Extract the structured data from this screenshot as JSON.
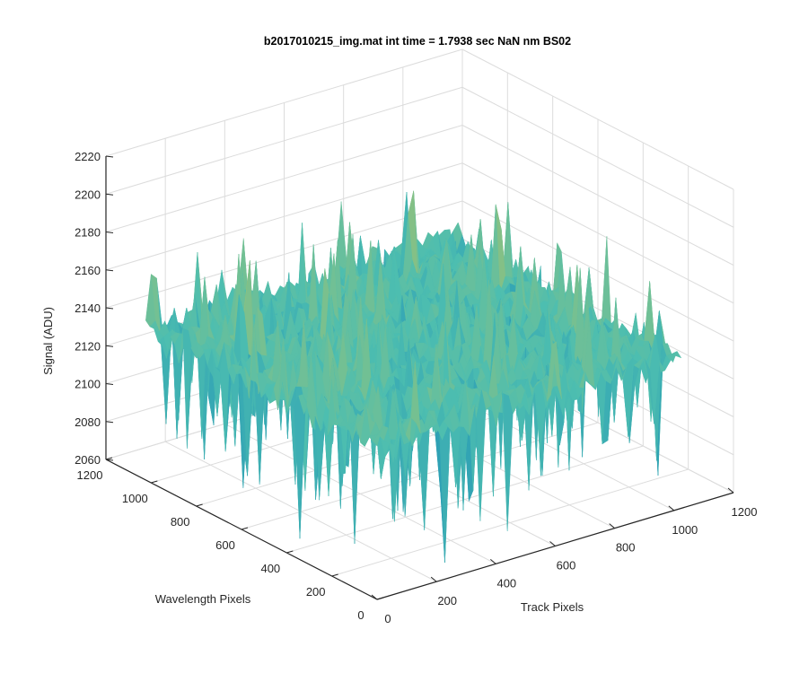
{
  "chart_data": {
    "type": "surface",
    "title": "b2017010215_img.mat int time = 1.7938 sec  NaN nm BS02",
    "xlabel": "Track Pixels",
    "ylabel": "Wavelength Pixels",
    "zlabel": "Signal (ADU)",
    "xlim": [
      0,
      1200
    ],
    "ylim": [
      0,
      1200
    ],
    "zlim": [
      2060,
      2220
    ],
    "xticks": [
      "0",
      "200",
      "400",
      "600",
      "800",
      "1000",
      "1200"
    ],
    "yticks": [
      "0",
      "200",
      "400",
      "600",
      "800",
      "1000",
      "1200"
    ],
    "zticks": [
      "2060",
      "2080",
      "2100",
      "2120",
      "2140",
      "2160",
      "2180",
      "2200",
      "2220"
    ],
    "grid": true,
    "colormap": "parula",
    "surface": {
      "x_range": [
        0,
        1024
      ],
      "y_range": [
        0,
        1024
      ],
      "z_mean": 2140,
      "z_min_approx": 2062,
      "z_max_approx": 2200
    },
    "colors": {
      "low": "#0072BD",
      "mid": "#4DBEB0",
      "high": "#EDC537",
      "axis": "#262626",
      "grid": "#DCDCDC"
    }
  }
}
